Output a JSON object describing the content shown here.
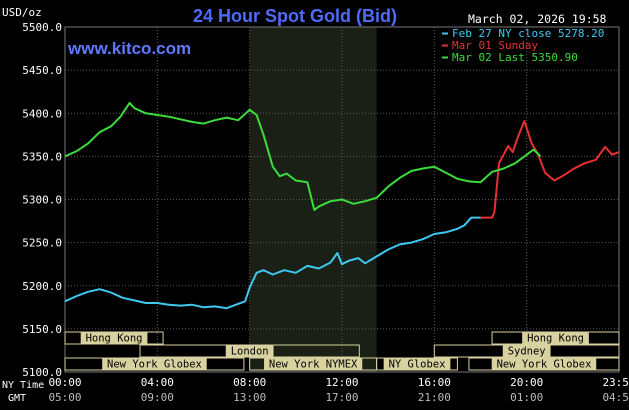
{
  "header": {
    "title": "24 Hour Spot Gold (Bid)",
    "site": "www.kitco.com",
    "timestamp": "March 02, 2026 19:58",
    "unit": "USD/oz"
  },
  "colors": {
    "background": "#000000",
    "grid": "#5a5a5a",
    "title": "#4f6bff",
    "site": "#5f7aff",
    "axis_text": "#ffffff",
    "session_fill": "#d8d2a0",
    "session_text": "#000000",
    "shade": "#1a2016"
  },
  "chart_data": {
    "type": "line",
    "title": "24 Hour Spot Gold (Bid)",
    "ylabel": "USD/oz",
    "ylim": [
      5100,
      5500
    ],
    "y_ticks": [
      "5500.0",
      "5450.0",
      "5400.0",
      "5350.0",
      "5300.0",
      "5250.0",
      "5200.0",
      "5150.0",
      "5100.0"
    ],
    "y_tick_values": [
      5500,
      5450,
      5400,
      5350,
      5300,
      5250,
      5200,
      5150,
      5100
    ],
    "xlim": [
      0,
      24
    ],
    "x_tick_hours": [
      0,
      4,
      8,
      12,
      16,
      20,
      24
    ],
    "x_ticks_ny": [
      "00:00",
      "04:00",
      "08:00",
      "12:00",
      "16:00",
      "20:00",
      "23:59"
    ],
    "x_ticks_gmt": [
      "05:00",
      "09:00",
      "13:00",
      "17:00",
      "21:00",
      "01:00",
      "04:59"
    ],
    "x_row_labels": [
      "NY Time",
      "GMT"
    ],
    "shaded_hours": [
      8.0,
      13.5
    ],
    "grid": true,
    "legend_position": "top-right",
    "legend": [
      {
        "label": "Feb 27 NY close 5278.20",
        "color": "#3ec8f0"
      },
      {
        "label": "Mar 01 Sunday",
        "color": "#e83030"
      },
      {
        "label": "Mar 02 Last 5350.90",
        "color": "#3bdc3b"
      }
    ],
    "series": [
      {
        "name": "Feb 27 NY close 5278.20",
        "color": "#3ec8f0",
        "x": [
          0,
          0.5,
          1,
          1.5,
          2,
          2.5,
          3,
          3.5,
          4,
          4.5,
          5,
          5.5,
          6,
          6.5,
          7,
          7.5,
          7.8,
          8,
          8.3,
          8.6,
          9,
          9.5,
          10,
          10.5,
          11,
          11.5,
          11.8,
          12,
          12.3,
          12.7,
          13,
          13.5,
          14,
          14.5,
          15,
          15.5,
          16,
          16.5,
          17,
          17.3,
          17.6,
          18
        ],
        "y": [
          5182,
          5188,
          5193,
          5196,
          5192,
          5186,
          5183,
          5180,
          5180,
          5178,
          5177,
          5178,
          5175,
          5176,
          5174,
          5179,
          5182,
          5198,
          5215,
          5218,
          5213,
          5218,
          5215,
          5223,
          5220,
          5227,
          5238,
          5225,
          5229,
          5232,
          5226,
          5234,
          5242,
          5248,
          5250,
          5254,
          5260,
          5262,
          5266,
          5270,
          5279,
          5279
        ]
      },
      {
        "name": "Mar 01 Sunday",
        "color": "#e83030",
        "x": [
          18,
          18.5,
          18.6,
          18.8,
          19.0,
          19.2,
          19.4,
          19.6,
          19.9,
          20.2,
          20.5,
          20.8,
          21.2,
          21.6,
          22,
          22.5,
          23,
          23.4,
          23.7,
          23.99
        ],
        "y": [
          5279,
          5279,
          5285,
          5342,
          5352,
          5362,
          5355,
          5371,
          5391,
          5366,
          5352,
          5331,
          5322,
          5328,
          5335,
          5342,
          5346,
          5361,
          5352,
          5355
        ]
      },
      {
        "name": "Mar 02 Last 5350.90",
        "color": "#3bdc3b",
        "x": [
          0,
          0.5,
          1,
          1.5,
          2,
          2.4,
          2.8,
          3,
          3.5,
          4,
          4.5,
          5,
          5.5,
          6,
          6.5,
          7,
          7.5,
          8,
          8.3,
          8.6,
          9,
          9.3,
          9.6,
          10,
          10.5,
          10.8,
          11,
          11.5,
          12,
          12.5,
          13,
          13.5,
          14,
          14.5,
          15,
          15.5,
          16,
          16.5,
          17,
          17.5,
          18,
          18.5,
          19,
          19.5,
          20,
          20.3,
          20.6
        ],
        "y": [
          5350,
          5356,
          5365,
          5378,
          5385,
          5396,
          5412,
          5406,
          5400,
          5398,
          5396,
          5393,
          5390,
          5388,
          5392,
          5395,
          5392,
          5404,
          5398,
          5375,
          5338,
          5327,
          5330,
          5322,
          5320,
          5288,
          5292,
          5298,
          5300,
          5295,
          5298,
          5302,
          5315,
          5325,
          5333,
          5336,
          5338,
          5331,
          5324,
          5321,
          5320,
          5332,
          5336,
          5342,
          5352,
          5358,
          5350
        ]
      }
    ]
  },
  "sessions": [
    {
      "label": "Hong Kong",
      "start": 0,
      "end": 4.25,
      "row": 0
    },
    {
      "label": "London",
      "start": 3.25,
      "end": 12.75,
      "row": 1
    },
    {
      "label": "New York Globex",
      "start": 0,
      "end": 7.75,
      "row": 2
    },
    {
      "label": "New York NYMEX",
      "start": 8.0,
      "end": 13.5,
      "row": 2
    },
    {
      "label": "NY Globex",
      "start": 13.5,
      "end": 17.0,
      "row": 2
    },
    {
      "label": "Hong Kong",
      "start": 18.5,
      "end": 24,
      "row": 0
    },
    {
      "label": "Sydney",
      "start": 16.0,
      "end": 24,
      "row": 1
    },
    {
      "label": "New York Globex",
      "start": 17.5,
      "end": 24,
      "row": 2
    }
  ]
}
